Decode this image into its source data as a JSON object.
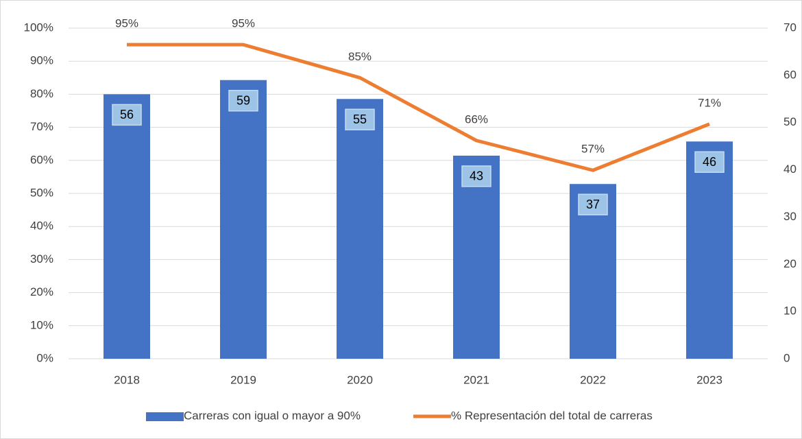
{
  "chart_data": {
    "type": "bar-line",
    "categories": [
      "2018",
      "2019",
      "2020",
      "2021",
      "2022",
      "2023"
    ],
    "series": [
      {
        "name": "Carreras con igual o mayor a 90%",
        "color": "#4472c4",
        "type": "bar",
        "axis": "y2",
        "values": [
          56,
          59,
          55,
          43,
          37,
          46
        ]
      },
      {
        "name": "% Representación del total de carreras",
        "color": "#ed7d31",
        "type": "line",
        "values": [
          95,
          95,
          85,
          66,
          57,
          71
        ],
        "value_labels": [
          "95%",
          "95%",
          "85%",
          "66%",
          "57%",
          "71%"
        ]
      }
    ],
    "ylim": [
      0,
      100
    ],
    "yticks": [
      {
        "value": 0,
        "label": "0%"
      },
      {
        "value": 10,
        "label": "10%"
      },
      {
        "value": 20,
        "label": "20%"
      },
      {
        "value": 30,
        "label": "30%"
      },
      {
        "value": 40,
        "label": "40%"
      },
      {
        "value": 50,
        "label": "50%"
      },
      {
        "value": 60,
        "label": "60%"
      },
      {
        "value": 70,
        "label": "70%"
      },
      {
        "value": 80,
        "label": "80%"
      },
      {
        "value": 90,
        "label": "90%"
      },
      {
        "value": 100,
        "label": "100%"
      }
    ],
    "y2lim": [
      0,
      70
    ],
    "y2ticks": [
      0,
      10,
      20,
      30,
      40,
      50,
      60,
      70
    ],
    "grid": true,
    "legend": "bottom"
  }
}
